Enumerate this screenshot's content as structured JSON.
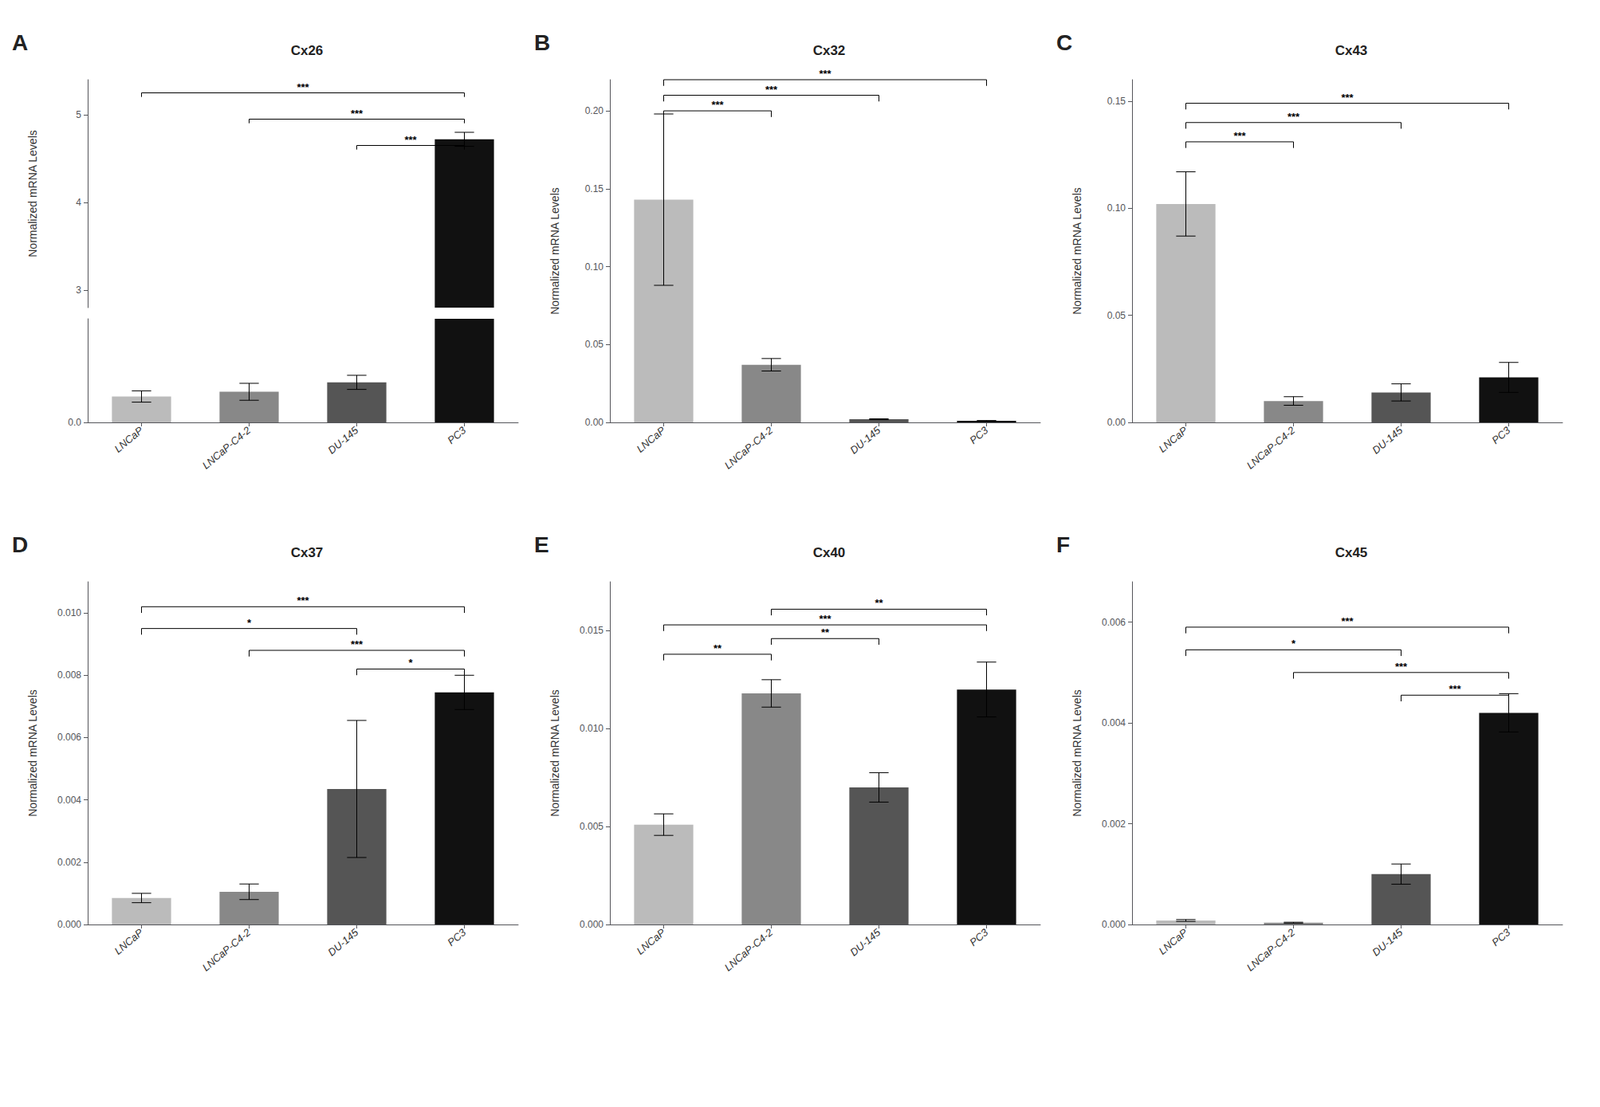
{
  "chart_data": [
    {
      "type": "bar",
      "label": "A",
      "title": "Cx26",
      "categories": [
        "LNCaP",
        "LNCaP-C4-2",
        "DU-145",
        "PC3"
      ],
      "values": [
        0.055,
        0.065,
        0.085,
        4.72
      ],
      "errors": [
        0.012,
        0.018,
        0.015,
        0.08
      ],
      "colors": [
        "#bbbbbb",
        "#888888",
        "#555555",
        "#111111"
      ],
      "ylim": [
        [
          0,
          0.22
        ],
        [
          2.8,
          5.4
        ]
      ],
      "yticks": [
        [
          {
            "value": 0,
            "label": "0.0"
          }
        ],
        [
          3,
          4,
          5
        ]
      ],
      "ylabel": "Normalized mRNA Levels",
      "grid": false,
      "annotations": [
        {
          "text": "***",
          "from": "LNCaP",
          "to": "PC3",
          "y": 5.25
        },
        {
          "text": "***",
          "from": "LNCaP-C4-2",
          "to": "PC3",
          "y": 4.95
        },
        {
          "text": "***",
          "from": "DU-145",
          "to": "PC3",
          "y": 4.65
        }
      ]
    },
    {
      "type": "bar",
      "label": "B",
      "title": "Cx32",
      "categories": [
        "LNCaP",
        "LNCaP-C4-2",
        "DU-145",
        "PC3"
      ],
      "values": [
        0.143,
        0.037,
        0.002,
        0.001
      ],
      "errors": [
        0.055,
        0.004,
        0.0003,
        0.0002
      ],
      "colors": [
        "#bbbbbb",
        "#888888",
        "#555555",
        "#111111"
      ],
      "ylim": [
        0,
        0.22
      ],
      "yticks": [
        {
          "value": 0,
          "label": "0.00"
        },
        0.05,
        {
          "value": 0.1,
          "label": "0.10"
        },
        0.15,
        {
          "value": 0.2,
          "label": "0.20"
        }
      ],
      "ylabel": "Normalized mRNA Levels",
      "grid": false,
      "annotations": [
        {
          "text": "***",
          "from": "LNCaP",
          "to": "LNCaP-C4-2",
          "y": 0.2
        },
        {
          "text": "***",
          "from": "LNCaP",
          "to": "DU-145",
          "y": 0.21
        },
        {
          "text": "***",
          "from": "LNCaP",
          "to": "PC3",
          "y": 0.22
        }
      ]
    },
    {
      "type": "bar",
      "label": "C",
      "title": "Cx43",
      "categories": [
        "LNCaP",
        "LNCaP-C4-2",
        "DU-145",
        "PC3"
      ],
      "values": [
        0.102,
        0.01,
        0.014,
        0.021
      ],
      "errors": [
        0.015,
        0.002,
        0.004,
        0.007
      ],
      "colors": [
        "#bbbbbb",
        "#888888",
        "#555555",
        "#111111"
      ],
      "ylim": [
        0,
        0.16
      ],
      "yticks": [
        {
          "value": 0,
          "label": "0.00"
        },
        0.05,
        {
          "value": 0.1,
          "label": "0.10"
        },
        0.15
      ],
      "ylabel": "Normalized mRNA Levels",
      "grid": false,
      "annotations": [
        {
          "text": "***",
          "from": "LNCaP",
          "to": "LNCaP-C4-2",
          "y": 0.131
        },
        {
          "text": "***",
          "from": "LNCaP",
          "to": "DU-145",
          "y": 0.14
        },
        {
          "text": "***",
          "from": "LNCaP",
          "to": "PC3",
          "y": 0.149
        }
      ]
    },
    {
      "type": "bar",
      "label": "D",
      "title": "Cx37",
      "categories": [
        "LNCaP",
        "LNCaP-C4-2",
        "DU-145",
        "PC3"
      ],
      "values": [
        0.00085,
        0.00105,
        0.00435,
        0.00745
      ],
      "errors": [
        0.00015,
        0.00025,
        0.0022,
        0.00055
      ],
      "colors": [
        "#bbbbbb",
        "#888888",
        "#555555",
        "#111111"
      ],
      "ylim": [
        0,
        0.011
      ],
      "yticks": [
        {
          "value": 0,
          "label": "0.000"
        },
        0.002,
        0.004,
        0.006,
        0.008,
        {
          "value": 0.01,
          "label": "0.010"
        }
      ],
      "ylabel": "Normalized mRNA Levels",
      "grid": false,
      "annotations": [
        {
          "text": "*",
          "from": "LNCaP",
          "to": "DU-145",
          "y": 0.0095
        },
        {
          "text": "***",
          "from": "LNCaP",
          "to": "PC3",
          "y": 0.0102
        },
        {
          "text": "***",
          "from": "LNCaP-C4-2",
          "to": "PC3",
          "y": 0.0088
        },
        {
          "text": "*",
          "from": "DU-145",
          "to": "PC3",
          "y": 0.0082
        }
      ]
    },
    {
      "type": "bar",
      "label": "E",
      "title": "Cx40",
      "categories": [
        "LNCaP",
        "LNCaP-C4-2",
        "DU-145",
        "PC3"
      ],
      "values": [
        0.0051,
        0.0118,
        0.007,
        0.012
      ],
      "errors": [
        0.00055,
        0.0007,
        0.00075,
        0.0014
      ],
      "colors": [
        "#bbbbbb",
        "#888888",
        "#555555",
        "#111111"
      ],
      "ylim": [
        0,
        0.0175
      ],
      "yticks": [
        {
          "value": 0,
          "label": "0.000"
        },
        0.005,
        {
          "value": 0.01,
          "label": "0.010"
        },
        0.015
      ],
      "ylabel": "Normalized mRNA Levels",
      "grid": false,
      "annotations": [
        {
          "text": "**",
          "from": "LNCaP",
          "to": "LNCaP-C4-2",
          "y": 0.0138
        },
        {
          "text": "***",
          "from": "LNCaP",
          "to": "PC3",
          "y": 0.0153
        },
        {
          "text": "**",
          "from": "LNCaP-C4-2",
          "to": "DU-145",
          "y": 0.0146
        },
        {
          "text": "**",
          "from": "LNCaP-C4-2",
          "to": "PC3",
          "y": 0.0161
        }
      ]
    },
    {
      "type": "bar",
      "label": "F",
      "title": "Cx45",
      "categories": [
        "LNCaP",
        "LNCaP-C4-2",
        "DU-145",
        "PC3"
      ],
      "values": [
        8e-05,
        3.5e-05,
        0.001,
        0.0042
      ],
      "errors": [
        1.8e-05,
        1e-05,
        0.0002,
        0.00038
      ],
      "colors": [
        "#bbbbbb",
        "#888888",
        "#555555",
        "#111111"
      ],
      "ylim": [
        0,
        0.0068
      ],
      "yticks": [
        {
          "value": 0,
          "label": "0.000"
        },
        0.002,
        0.004,
        0.006
      ],
      "ylabel": "Normalized mRNA Levels",
      "grid": false,
      "annotations": [
        {
          "text": "*",
          "from": "LNCaP",
          "to": "DU-145",
          "y": 0.00545
        },
        {
          "text": "***",
          "from": "LNCaP",
          "to": "PC3",
          "y": 0.0059
        },
        {
          "text": "***",
          "from": "LNCaP-C4-2",
          "to": "PC3",
          "y": 0.005
        },
        {
          "text": "***",
          "from": "DU-145",
          "to": "PC3",
          "y": 0.00455
        }
      ]
    }
  ]
}
